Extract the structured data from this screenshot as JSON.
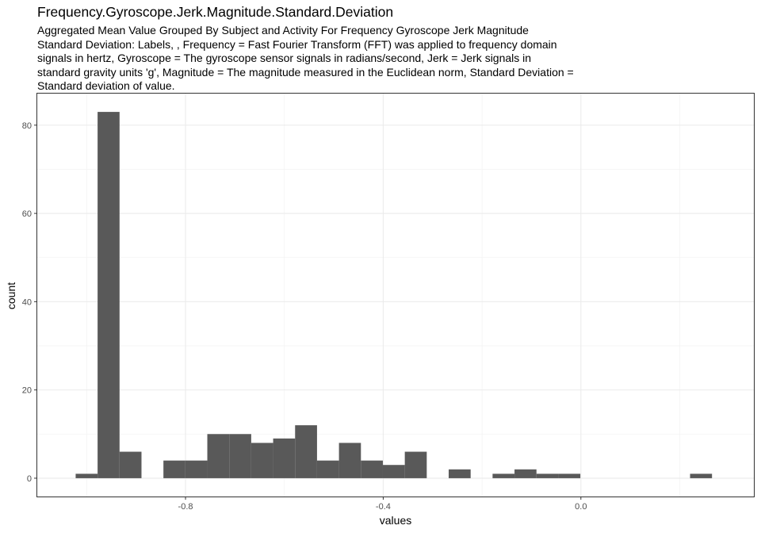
{
  "title": "Frequency.Gyroscope.Jerk.Magnitude.Standard.Deviation",
  "subtitle": "Aggregated Mean Value Grouped By Subject and Activity For Frequency Gyroscope Jerk Magnitude Standard Deviation: Labels, , Frequency = Fast Fourier Transform (FFT) was applied to frequency domain signals in hertz, Gyroscope = The gyroscope sensor signals in radians/second, Jerk = Jerk signals in standard gravity units 'g', Magnitude = The magnitude measured in the Euclidean norm, Standard Deviation = Standard deviation of value.",
  "chart_data": {
    "type": "histogram",
    "xlabel": "values",
    "ylabel": "count",
    "bin_width": 0.0444,
    "bins": [
      {
        "x_start": -1.0223,
        "x_end": -0.9779,
        "count": 1
      },
      {
        "x_start": -0.9779,
        "x_end": -0.9335,
        "count": 83
      },
      {
        "x_start": -0.9335,
        "x_end": -0.8891,
        "count": 6
      },
      {
        "x_start": -0.8891,
        "x_end": -0.8447,
        "count": 0
      },
      {
        "x_start": -0.8447,
        "x_end": -0.8003,
        "count": 4
      },
      {
        "x_start": -0.8003,
        "x_end": -0.7559,
        "count": 4
      },
      {
        "x_start": -0.7559,
        "x_end": -0.7115,
        "count": 10
      },
      {
        "x_start": -0.7115,
        "x_end": -0.6671,
        "count": 10
      },
      {
        "x_start": -0.6671,
        "x_end": -0.6227,
        "count": 8
      },
      {
        "x_start": -0.6227,
        "x_end": -0.5783,
        "count": 9
      },
      {
        "x_start": -0.5783,
        "x_end": -0.5339,
        "count": 12
      },
      {
        "x_start": -0.5339,
        "x_end": -0.4895,
        "count": 4
      },
      {
        "x_start": -0.4895,
        "x_end": -0.4451,
        "count": 8
      },
      {
        "x_start": -0.4451,
        "x_end": -0.4007,
        "count": 4
      },
      {
        "x_start": -0.4007,
        "x_end": -0.3563,
        "count": 3
      },
      {
        "x_start": -0.3563,
        "x_end": -0.3119,
        "count": 6
      },
      {
        "x_start": -0.3119,
        "x_end": -0.2675,
        "count": 0
      },
      {
        "x_start": -0.2675,
        "x_end": -0.2231,
        "count": 2
      },
      {
        "x_start": -0.2231,
        "x_end": -0.1787,
        "count": 0
      },
      {
        "x_start": -0.1787,
        "x_end": -0.1343,
        "count": 1
      },
      {
        "x_start": -0.1343,
        "x_end": -0.0899,
        "count": 2
      },
      {
        "x_start": -0.0899,
        "x_end": -0.0455,
        "count": 1
      },
      {
        "x_start": -0.0455,
        "x_end": -0.0011,
        "count": 1
      },
      {
        "x_start": 0.2209,
        "x_end": 0.2653,
        "count": 1
      }
    ],
    "xlim": [
      -1.1,
      0.35
    ],
    "ylim": [
      -4.15,
      87.15
    ],
    "x_ticks": [
      -0.8,
      -0.4,
      0.0
    ],
    "x_tick_labels": [
      "-0.8",
      "-0.4",
      "0.0"
    ],
    "y_ticks": [
      0,
      20,
      40,
      60,
      80
    ],
    "y_tick_labels": [
      "0",
      "20",
      "40",
      "60",
      "80"
    ],
    "grid": true,
    "bar_color": "#595959",
    "theme": "bw"
  }
}
